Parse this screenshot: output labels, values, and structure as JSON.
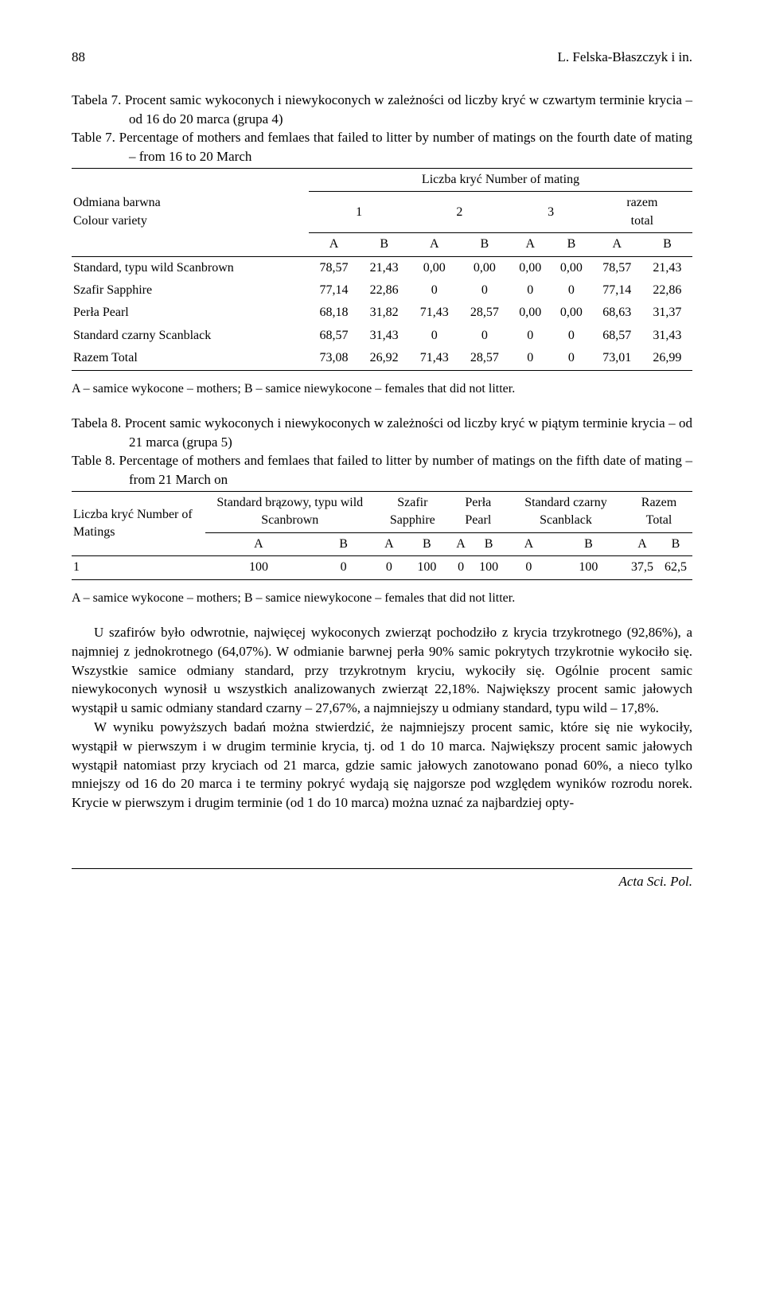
{
  "header": {
    "page_num": "88",
    "running_title": "L. Felska-Błaszczyk i in."
  },
  "table7": {
    "caption_pl_prefix": "Tabela 7.",
    "caption_pl": "Procent samic wykoconych i niewykoconych w zależności od liczby kryć w czwartym terminie krycia – od 16 do 20 marca (grupa 4)",
    "caption_en_prefix": "Table 7.",
    "caption_en": "Percentage of mothers and femlaes that failed to litter by number of matings on the fourth date of mating – from 16 to 20 March",
    "col_group_label": "Liczba kryć Number of mating",
    "row_header_label": "Odmiana barwna\nColour variety",
    "groups": [
      "1",
      "2",
      "3"
    ],
    "total_label": "razem\ntotal",
    "sub_cols": [
      "A",
      "B",
      "A",
      "B",
      "A",
      "B",
      "A",
      "B"
    ],
    "rows": [
      {
        "label": "Standard, typu wild Scanbrown",
        "values": [
          "78,57",
          "21,43",
          "0,00",
          "0,00",
          "0,00",
          "0,00",
          "78,57",
          "21,43"
        ]
      },
      {
        "label": "Szafir Sapphire",
        "values": [
          "77,14",
          "22,86",
          "0",
          "0",
          "0",
          "0",
          "77,14",
          "22,86"
        ]
      },
      {
        "label": "Perła Pearl",
        "values": [
          "68,18",
          "31,82",
          "71,43",
          "28,57",
          "0,00",
          "0,00",
          "68,63",
          "31,37"
        ]
      },
      {
        "label": "Standard czarny Scanblack",
        "values": [
          "68,57",
          "31,43",
          "0",
          "0",
          "0",
          "0",
          "68,57",
          "31,43"
        ]
      },
      {
        "label": "Razem Total",
        "values": [
          "73,08",
          "26,92",
          "71,43",
          "28,57",
          "0",
          "0",
          "73,01",
          "26,99"
        ]
      }
    ],
    "footnote": "A – samice wykocone – mothers; B – samice niewykocone – females that did not litter."
  },
  "table8": {
    "caption_pl_prefix": "Tabela 8.",
    "caption_pl": "Procent samic wykoconych i niewykoconych w zależności od liczby kryć w piątym terminie krycia – od 21 marca (grupa 5)",
    "caption_en_prefix": "Table 8.",
    "caption_en": "Percentage of mothers and femlaes that failed to litter by number of matings on the fifth date of mating – from 21 March on",
    "row_header_label": "Liczba kryć Number of Matings",
    "col_groups": [
      "Standard brązowy, typu wild Scanbrown",
      "Szafir Sapphire",
      "Perła Pearl",
      "Standard czarny Scanblack",
      "Razem Total"
    ],
    "sub_cols": [
      "A",
      "B",
      "A",
      "B",
      "A",
      "B",
      "A",
      "B",
      "A",
      "B"
    ],
    "rows": [
      {
        "label": "1",
        "values": [
          "100",
          "0",
          "0",
          "100",
          "0",
          "100",
          "0",
          "100",
          "37,5",
          "62,5"
        ]
      }
    ],
    "footnote": "A – samice wykocone – mothers; B – samice niewykocone – females that did not litter."
  },
  "body": {
    "p1": "U szafirów było odwrotnie, najwięcej wykoconych zwierząt pochodziło z krycia trzykrotnego (92,86%), a najmniej z jednokrotnego (64,07%). W odmianie barwnej perła 90% samic pokrytych trzykrotnie wykociło się. Wszystkie samice odmiany standard, przy trzykrotnym kryciu, wykociły się. Ogólnie procent samic niewykoconych wynosił u wszystkich analizowanych zwierząt 22,18%. Największy procent samic jałowych wystąpił u samic odmiany standard czarny – 27,67%, a najmniejszy u odmiany standard, typu wild – 17,8%.",
    "p2": "W wyniku powyższych badań można stwierdzić, że najmniejszy procent samic, które się nie wykociły, wystąpił w pierwszym i w drugim terminie krycia, tj. od 1 do 10 marca. Największy procent samic jałowych wystąpił natomiast przy kryciach od 21 marca, gdzie samic jałowych zanotowano ponad 60%, a nieco tylko mniejszy od 16 do 20 marca i te terminy pokryć wydają się najgorsze pod względem wyników rozrodu norek. Krycie w pierwszym i drugim terminie (od 1 do 10 marca) można uznać za najbardziej opty-"
  },
  "footer": {
    "journal": "Acta Sci. Pol."
  }
}
